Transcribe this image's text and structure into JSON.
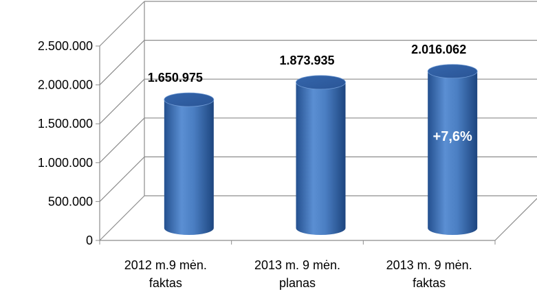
{
  "chart_data": {
    "type": "bar",
    "style": "3d-cylinder",
    "categories": [
      [
        "2012 m.9 mėn.",
        "faktas"
      ],
      [
        "2013 m. 9 mėn.",
        "planas"
      ],
      [
        "2013 m. 9 mėn.",
        "faktas"
      ]
    ],
    "values": [
      1650975,
      1873935,
      2016062
    ],
    "data_labels": [
      "1.650.975",
      "1.873.935",
      "2.016.062"
    ],
    "y_ticks": [
      "0",
      "500.000",
      "1.000.000",
      "1.500.000",
      "2.000.000",
      "2.500.000"
    ],
    "ylim": [
      0,
      2500000
    ],
    "y_step": 500000,
    "annotation": {
      "text": "+7,6%",
      "bar_index": 2
    },
    "grid": true,
    "colors": {
      "bar": "#4a7ec2",
      "bar_dark": "#1f4a85",
      "bar_top": "#3c6cb0",
      "grid": "#8c8c8c"
    }
  }
}
